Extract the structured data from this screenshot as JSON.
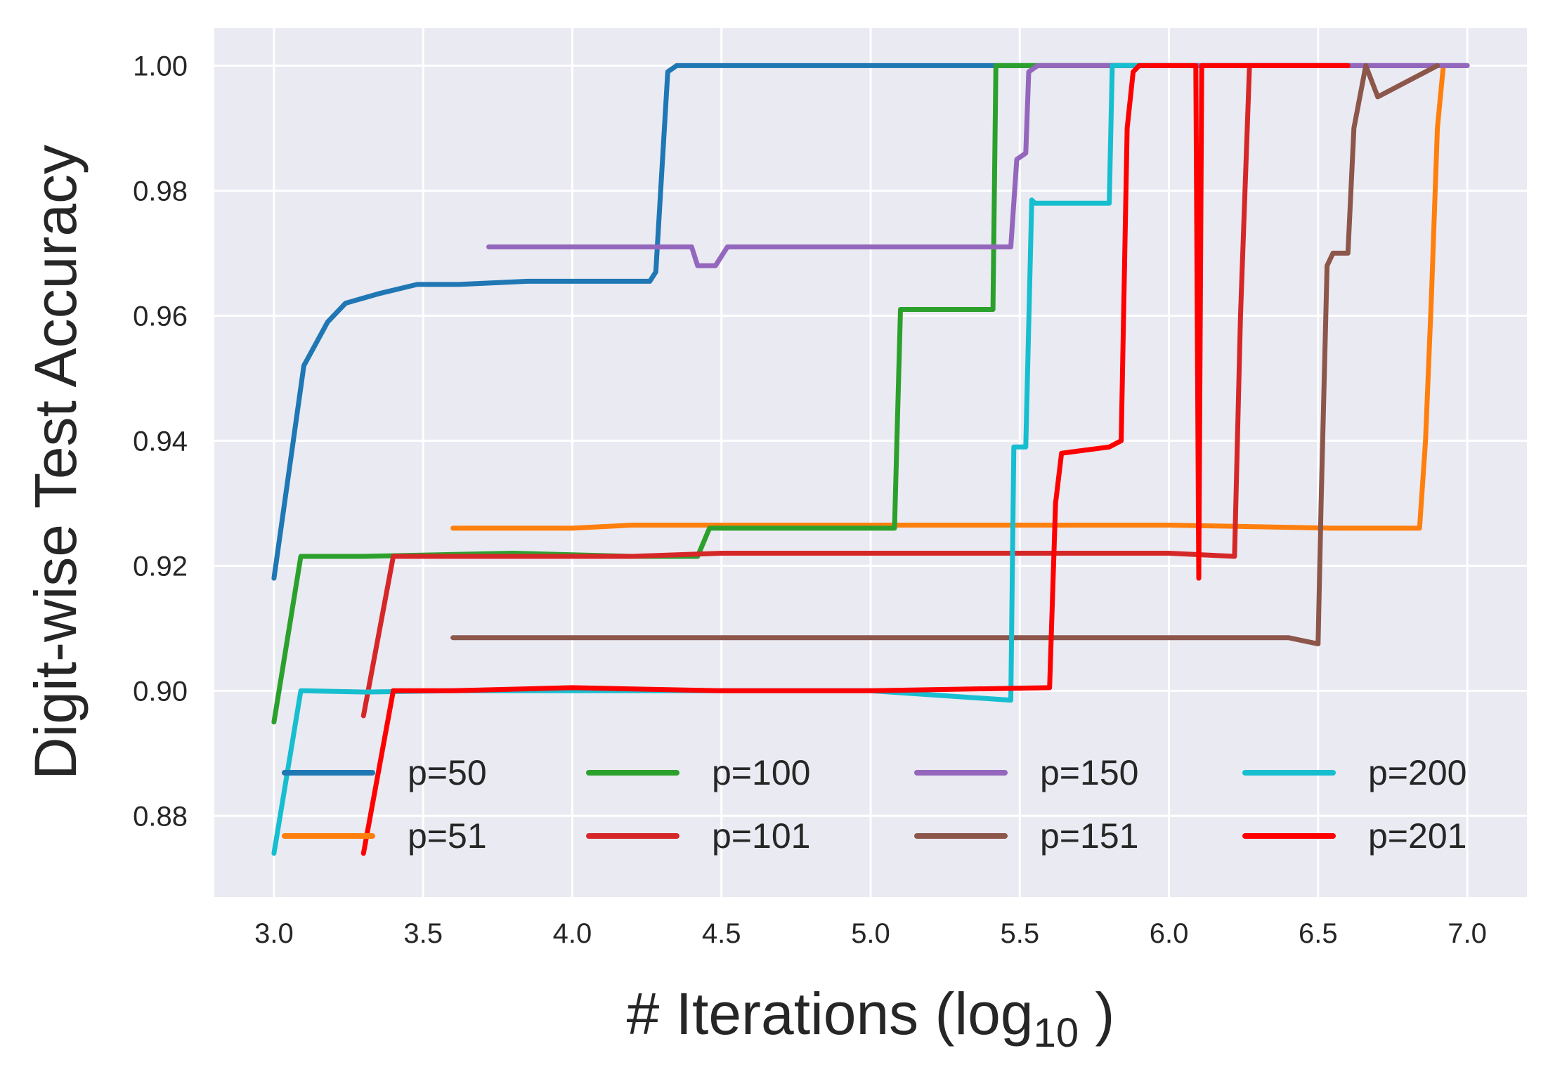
{
  "chart_data": {
    "type": "line",
    "xlabel": "# Iterations (log",
    "xlabel_sub": "10",
    "xlabel_suffix": " )",
    "ylabel": "Digit-wise Test Accuracy",
    "xlim": [
      2.8,
      7.2
    ],
    "ylim": [
      0.867,
      1.006
    ],
    "grid": true,
    "background": "#EAEAF2",
    "x_ticks": [
      3.0,
      3.5,
      4.0,
      4.5,
      5.0,
      5.5,
      6.0,
      6.5,
      7.0
    ],
    "x_tick_labels": [
      "3.0",
      "3.5",
      "4.0",
      "4.5",
      "5.0",
      "5.5",
      "6.0",
      "6.5",
      "7.0"
    ],
    "y_ticks": [
      0.88,
      0.9,
      0.92,
      0.94,
      0.96,
      0.98,
      1.0
    ],
    "y_tick_labels": [
      "0.88",
      "0.90",
      "0.92",
      "0.94",
      "0.96",
      "0.98",
      "1.00"
    ],
    "legend_position": "lower-center",
    "legend_columns": 4,
    "series": [
      {
        "name": "p=50",
        "color": "#1f77b4",
        "x": [
          3.0,
          3.1,
          3.18,
          3.24,
          3.35,
          3.48,
          3.62,
          3.85,
          4.1,
          4.26,
          4.28,
          4.32,
          4.35,
          4.4,
          5.5,
          6.0,
          7.0
        ],
        "y": [
          0.918,
          0.952,
          0.959,
          0.962,
          0.9635,
          0.965,
          0.965,
          0.9655,
          0.9655,
          0.9655,
          0.967,
          0.999,
          1.0,
          1.0,
          1.0,
          1.0,
          1.0
        ]
      },
      {
        "name": "p=51",
        "color": "#ff7f0e",
        "x": [
          3.6,
          4.0,
          4.2,
          5.0,
          6.0,
          6.55,
          6.84,
          6.86,
          6.88,
          6.9,
          6.92
        ],
        "y": [
          0.926,
          0.926,
          0.9265,
          0.9265,
          0.9265,
          0.926,
          0.926,
          0.94,
          0.963,
          0.99,
          1.0
        ]
      },
      {
        "name": "p=100",
        "color": "#2ca02c",
        "x": [
          3.0,
          3.09,
          3.3,
          3.8,
          4.2,
          4.42,
          4.46,
          4.7,
          5.08,
          5.1,
          5.41,
          5.42,
          5.44,
          5.9
        ],
        "y": [
          0.895,
          0.9215,
          0.9215,
          0.922,
          0.9215,
          0.9215,
          0.926,
          0.926,
          0.926,
          0.961,
          0.961,
          1.0,
          1.0,
          1.0
        ]
      },
      {
        "name": "p=101",
        "color": "#d62728",
        "x": [
          3.3,
          3.4,
          3.8,
          4.2,
          4.5,
          5.5,
          6.0,
          6.22,
          6.24,
          6.27,
          6.3,
          6.6
        ],
        "y": [
          0.896,
          0.9215,
          0.9215,
          0.9215,
          0.922,
          0.922,
          0.922,
          0.9215,
          0.96,
          1.0,
          1.0,
          1.0
        ]
      },
      {
        "name": "p=150",
        "color": "#9467bd",
        "x": [
          3.72,
          4.0,
          4.4,
          4.42,
          4.48,
          4.52,
          5.0,
          5.47,
          5.49,
          5.52,
          5.53,
          5.56,
          6.0,
          7.0
        ],
        "y": [
          0.971,
          0.971,
          0.971,
          0.968,
          0.968,
          0.971,
          0.971,
          0.971,
          0.985,
          0.986,
          0.999,
          1.0,
          1.0,
          1.0
        ]
      },
      {
        "name": "p=151",
        "color": "#8c564b",
        "x": [
          3.6,
          4.0,
          5.0,
          6.0,
          6.4,
          6.5,
          6.51,
          6.53,
          6.55,
          6.6,
          6.62,
          6.66,
          6.7,
          6.9
        ],
        "y": [
          0.9085,
          0.9085,
          0.9085,
          0.9085,
          0.9085,
          0.9075,
          0.93,
          0.968,
          0.97,
          0.97,
          0.99,
          1.0,
          0.995,
          1.0
        ]
      },
      {
        "name": "p=200",
        "color": "#17becf",
        "x": [
          3.0,
          3.09,
          3.3,
          3.6,
          4.0,
          5.0,
          5.47,
          5.48,
          5.52,
          5.54,
          5.55,
          5.8,
          5.81,
          5.83,
          6.0
        ],
        "y": [
          0.874,
          0.9,
          0.8998,
          0.9,
          0.9,
          0.9,
          0.8985,
          0.939,
          0.939,
          0.9785,
          0.978,
          0.978,
          1.0,
          1.0,
          1.0
        ]
      },
      {
        "name": "p=201",
        "color": "#ff0000",
        "x": [
          3.3,
          3.4,
          3.6,
          4.0,
          4.5,
          5.0,
          5.6,
          5.62,
          5.64,
          5.8,
          5.84,
          5.86,
          5.88,
          5.9,
          6.0,
          6.09,
          6.1,
          6.11,
          6.4,
          6.6
        ],
        "y": [
          0.874,
          0.9,
          0.9,
          0.9005,
          0.9,
          0.9,
          0.9005,
          0.93,
          0.938,
          0.939,
          0.94,
          0.99,
          0.999,
          1.0,
          1.0,
          1.0,
          0.918,
          1.0,
          1.0,
          1.0
        ]
      }
    ]
  }
}
